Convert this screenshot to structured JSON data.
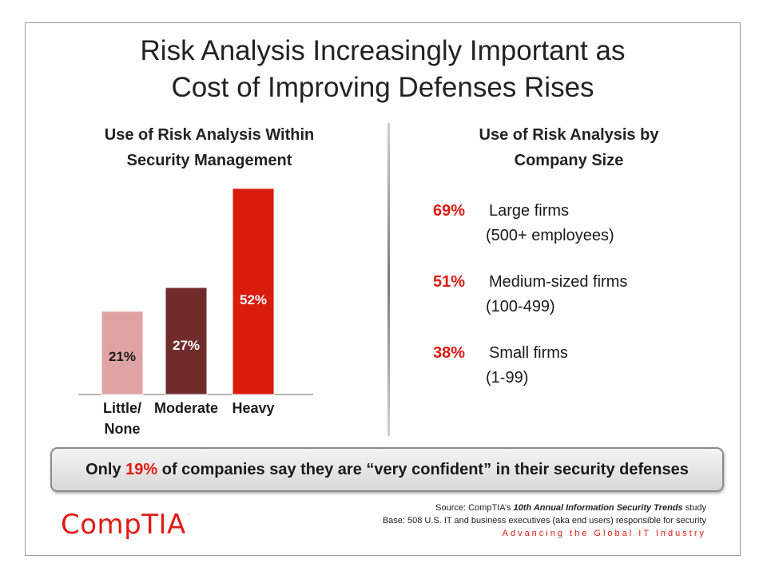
{
  "title": {
    "line1": "Risk Analysis Increasingly Important as",
    "line2": "Cost of Improving Defenses Rises"
  },
  "left_panel": {
    "title_line1": "Use of Risk Analysis Within",
    "title_line2": "Security Management"
  },
  "chart_data": {
    "type": "bar",
    "title": "Use of Risk Analysis Within Security Management",
    "categories": [
      "Little/ None",
      "Moderate",
      "Heavy"
    ],
    "category_lines": [
      [
        "Little/",
        "None"
      ],
      [
        "Moderate"
      ],
      [
        "Heavy"
      ]
    ],
    "values": [
      21,
      27,
      52
    ],
    "data_labels": [
      "21%",
      "27%",
      "52%"
    ],
    "colors": [
      "#e0a3a3",
      "#702b2b",
      "#d91c0b"
    ],
    "label_colors": [
      "#1a1a1a",
      "#ffffff",
      "#ffffff"
    ],
    "ylim": [
      0,
      55
    ],
    "xlabel": "",
    "ylabel": "",
    "grid": false
  },
  "right_panel": {
    "title_line1": "Use of Risk Analysis by",
    "title_line2": "Company Size",
    "stats": [
      {
        "pct": "69%",
        "label": "Large firms",
        "sub": "(500+ employees)"
      },
      {
        "pct": "51%",
        "label": "Medium-sized firms",
        "sub": "(100-499)"
      },
      {
        "pct": "38%",
        "label": "Small firms",
        "sub": "(1-99)"
      }
    ]
  },
  "callout": {
    "prefix": "Only ",
    "highlight": "19%",
    "suffix": " of companies say they are “very confident” in their security defenses"
  },
  "footer": {
    "logo": "CompTIA",
    "logo_mark": ".",
    "source_prefix": "Source: CompTIA’s ",
    "source_italic": "10th Annual Information Security Trends",
    "source_suffix": " study",
    "base": "Base: 508 U.S. IT and business executives (aka end users) responsible for security",
    "tagline": "Advancing the Global IT Industry"
  },
  "accent_color": "#e01b14"
}
